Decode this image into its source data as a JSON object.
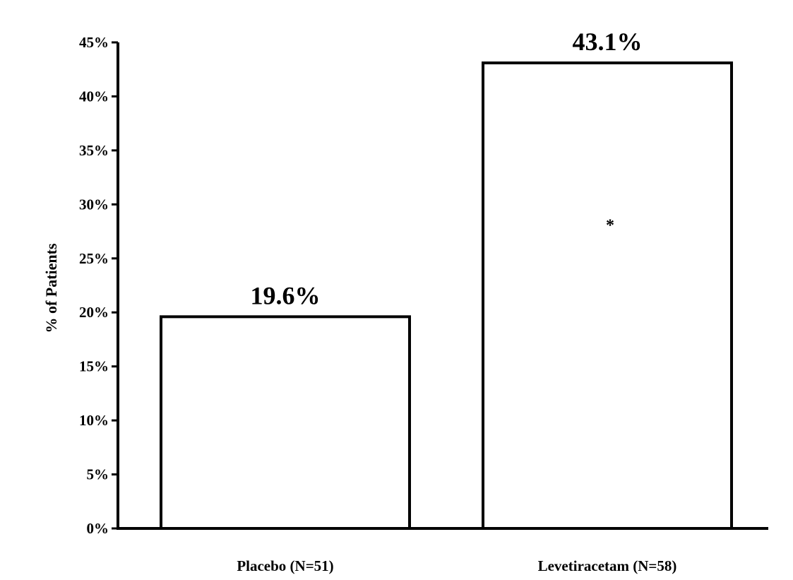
{
  "chart_data": {
    "type": "bar",
    "title": "",
    "xlabel": "",
    "ylabel": "% of Patients",
    "categories": [
      "Placebo (N=51)",
      "Levetiracetam (N=58)"
    ],
    "values": [
      19.6,
      43.1
    ],
    "data_labels": [
      "19.6%",
      "43.1%"
    ],
    "ylim": [
      0,
      45
    ],
    "yticks": [
      0,
      5,
      10,
      15,
      20,
      25,
      30,
      35,
      40,
      45
    ],
    "ytick_labels": [
      "0%",
      "5%",
      "10%",
      "15%",
      "20%",
      "25%",
      "30%",
      "35%",
      "40%",
      "45%"
    ],
    "grid": false,
    "legend": "none",
    "bar_fill": "#ffffff",
    "bar_edge": "#000000",
    "annotations": [
      {
        "category_index": 1,
        "text": "*"
      }
    ]
  }
}
